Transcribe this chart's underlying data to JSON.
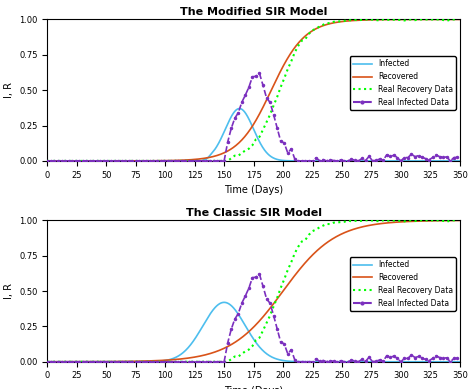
{
  "title_top": "The Modified SIR Model",
  "title_bottom": "The Classic SIR Model",
  "xlabel": "Time (Days)",
  "ylabel": "I, R",
  "xlim": [
    0,
    350
  ],
  "ylim": [
    0,
    1
  ],
  "xticks": [
    0,
    25,
    50,
    75,
    100,
    125,
    150,
    175,
    200,
    225,
    250,
    275,
    300,
    325,
    350
  ],
  "yticks": [
    0,
    0.25,
    0.5,
    0.75,
    1
  ],
  "infected_color": "#4DBEEE",
  "recovered_color": "#D95319",
  "real_recovery_color": "#00FF00",
  "real_infected_color": "#7B2FBE",
  "background_color": "#FFFFFF"
}
